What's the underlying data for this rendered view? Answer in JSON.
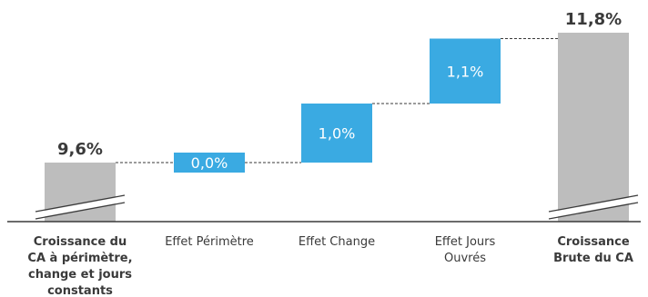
{
  "colors": {
    "total": "#bdbdbd",
    "delta": "#3aaae2",
    "axis": "#3a3a3a",
    "connector": "#3a3a3a"
  },
  "chart_data": {
    "type": "waterfall",
    "title": "",
    "xlabel": "",
    "ylabel": "",
    "ylim": [
      8.6,
      11.8
    ],
    "axis_break": true,
    "grid": false,
    "categories": [
      {
        "label_lines": [
          "Croissance du",
          "CA à périmètre,",
          "change et jours",
          "constants"
        ],
        "bold": true
      },
      {
        "label_lines": [
          "Effet Périmètre"
        ],
        "bold": false
      },
      {
        "label_lines": [
          "Effet Change"
        ],
        "bold": false
      },
      {
        "label_lines": [
          "Effet Jours",
          "Ouvrés"
        ],
        "bold": false
      },
      {
        "label_lines": [
          "Croissance",
          "Brute du CA"
        ],
        "bold": true
      }
    ],
    "bars": [
      {
        "kind": "total",
        "value": 9.6,
        "label": "9,6%"
      },
      {
        "kind": "delta",
        "value": 0.0,
        "label": "0,0%"
      },
      {
        "kind": "delta",
        "value": 1.0,
        "label": "1,0%"
      },
      {
        "kind": "delta",
        "value": 1.1,
        "label": "1,1%"
      },
      {
        "kind": "total",
        "value": 11.8,
        "label": "11,8%"
      }
    ]
  }
}
